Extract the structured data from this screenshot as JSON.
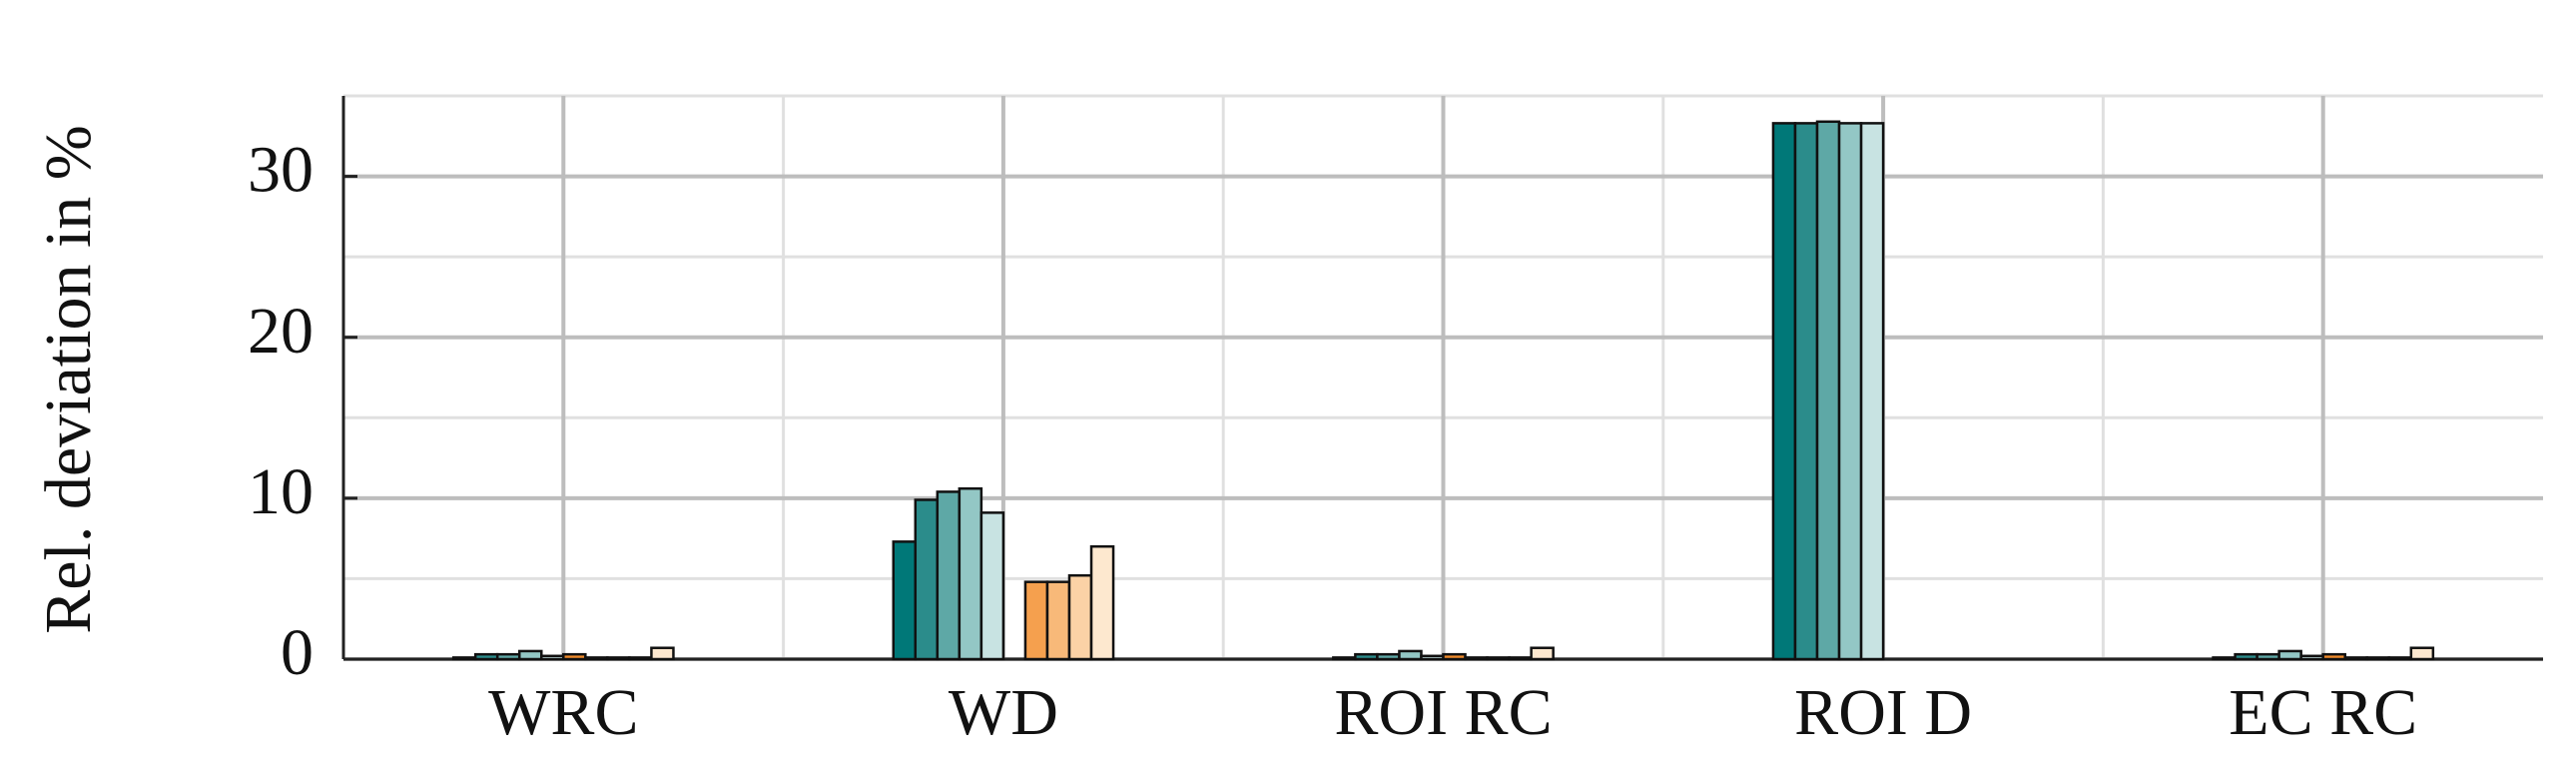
{
  "chart_data": {
    "type": "bar",
    "ylabel": "Rel. deviation in %",
    "categories": [
      "WRC",
      "WD",
      "ROI RC",
      "ROI D",
      "EC RC"
    ],
    "series": [
      {
        "color": "#007878",
        "values": [
          0.1,
          7.3,
          0.1,
          33.3,
          0.1
        ]
      },
      {
        "color": "#2b8c8b",
        "values": [
          0.3,
          9.9,
          0.3,
          33.3,
          0.3
        ]
      },
      {
        "color": "#5ea8a6",
        "values": [
          0.3,
          10.4,
          0.3,
          33.4,
          0.3
        ]
      },
      {
        "color": "#93c7c5",
        "values": [
          0.5,
          10.6,
          0.5,
          33.3,
          0.5
        ]
      },
      {
        "color": "#c8e3e2",
        "values": [
          0.2,
          9.1,
          0.2,
          33.3,
          0.2
        ]
      },
      {
        "color": "#f08a2a",
        "values": [
          0.3,
          0,
          0.3,
          0,
          0.3
        ]
      },
      {
        "color": "#f5a04e",
        "values": [
          0.1,
          4.8,
          0.1,
          0,
          0.1
        ]
      },
      {
        "color": "#f8b979",
        "values": [
          0.1,
          4.8,
          0.1,
          0,
          0.1
        ]
      },
      {
        "color": "#fbd2a6",
        "values": [
          0.1,
          5.2,
          0.1,
          0,
          0.1
        ]
      },
      {
        "color": "#fde8cf",
        "values": [
          0.7,
          7.0,
          0.7,
          0,
          0.7
        ]
      }
    ],
    "ylim": [
      0,
      35
    ],
    "yticks": [
      0,
      10,
      20,
      30
    ],
    "yminorticks": [
      5,
      15,
      25,
      35
    ],
    "grid": true
  }
}
